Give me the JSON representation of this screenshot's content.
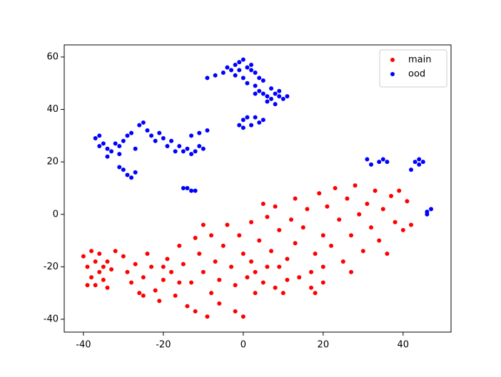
{
  "chart_data": {
    "type": "scatter",
    "xlim": [
      -44.8,
      52
    ],
    "ylim": [
      -44.9,
      64.6
    ],
    "xticks": [
      -40,
      -20,
      0,
      20,
      40
    ],
    "yticks": [
      -40,
      -20,
      0,
      20,
      40,
      60
    ],
    "legend": "upper right",
    "series": [
      {
        "name": "main",
        "color": "#ff0000",
        "x": [
          -40,
          -39,
          -38,
          -38,
          -37,
          -37,
          -36,
          -36,
          -35,
          -35,
          -34,
          -34,
          -33,
          -39,
          -32,
          -30,
          -29,
          -28,
          -27,
          -26,
          -25,
          -24,
          -23,
          -22,
          -21,
          -20,
          -19,
          -18,
          -17,
          -16,
          -15,
          -14,
          -13,
          -12,
          -12,
          -11,
          -10,
          -9,
          -8,
          -8,
          -7,
          -6,
          -5,
          -4,
          -3,
          -2,
          -2,
          -1,
          0,
          0,
          1,
          2,
          2,
          3,
          4,
          5,
          6,
          6,
          7,
          8,
          8,
          9,
          10,
          11,
          12,
          13,
          13,
          14,
          15,
          16,
          17,
          17,
          18,
          18,
          19,
          20,
          20,
          21,
          22,
          23,
          24,
          25,
          26,
          27,
          28,
          29,
          30,
          31,
          32,
          33,
          34,
          35,
          36,
          37,
          38,
          39,
          40,
          41,
          42,
          -6,
          -16,
          -25,
          -20,
          11,
          3,
          -10,
          27,
          20,
          5,
          9
        ],
        "values": [
          -16,
          -20,
          -14,
          -24,
          -18,
          -27,
          -22,
          -15,
          -20,
          -25,
          -18,
          -28,
          -21,
          -27,
          -14,
          -16,
          -22,
          -26,
          -19,
          -30,
          -24,
          -15,
          -20,
          -29,
          -33,
          -25,
          -17,
          -22,
          -31,
          -12,
          -19,
          -35,
          -26,
          -9,
          -37,
          -15,
          -22,
          -39,
          -30,
          -8,
          -18,
          -25,
          -12,
          -4,
          -20,
          -27,
          -37,
          -8,
          -15,
          -39,
          -24,
          -3,
          -18,
          -30,
          -10,
          -26,
          -1,
          -20,
          -14,
          3,
          -28,
          -6,
          -30,
          -17,
          -2,
          6,
          -11,
          -24,
          -5,
          2,
          -22,
          -28,
          -30,
          -15,
          8,
          -8,
          -26,
          3,
          -12,
          10,
          -2,
          -18,
          6,
          -8,
          11,
          0,
          -14,
          4,
          -5,
          9,
          -10,
          2,
          -15,
          7,
          -3,
          9,
          -6,
          5,
          -4,
          -34,
          -26,
          -31,
          -20,
          -25,
          -22,
          -4,
          -22,
          -20,
          4,
          -20
        ]
      },
      {
        "name": "ood",
        "color": "#0000ff",
        "x": [
          -9,
          -7,
          -5,
          -4,
          -3,
          -2,
          -1,
          0,
          1,
          2,
          3,
          -2,
          0,
          1,
          3,
          4,
          5,
          -1,
          2,
          4,
          5,
          6,
          7,
          8,
          9,
          10,
          11,
          8,
          6,
          3,
          7,
          9,
          0,
          1,
          3,
          5,
          -1,
          0,
          2,
          4,
          -37,
          -36,
          -35,
          -34,
          -33,
          -36,
          -32,
          -31,
          -30,
          -29,
          -28,
          -27,
          -26,
          -25,
          -24,
          -23,
          -22,
          -21,
          -20,
          -19,
          -18,
          -17,
          -16,
          -15,
          -14,
          -13,
          -12,
          -11,
          -10,
          -11,
          -9,
          -13,
          -34,
          -31,
          -30,
          -29,
          -28,
          -27,
          -31,
          -14,
          -13,
          -12,
          -15,
          31,
          32,
          34,
          35,
          36,
          43,
          44,
          45,
          44,
          46,
          47,
          46,
          42
        ],
        "values": [
          52,
          53,
          54,
          56,
          55,
          57,
          58,
          59,
          56,
          55,
          54,
          53,
          52,
          50,
          49,
          52,
          51,
          55,
          57,
          47,
          46,
          45,
          44,
          46,
          45,
          44,
          45,
          42,
          43,
          46,
          48,
          47,
          36,
          37,
          37,
          36,
          34,
          33,
          34,
          35,
          29,
          30,
          27,
          25,
          24,
          26,
          27,
          26,
          28,
          30,
          31,
          25,
          34,
          35,
          32,
          30,
          28,
          31,
          29,
          26,
          28,
          24,
          26,
          24,
          25,
          23,
          24,
          26,
          25,
          31,
          32,
          30,
          22,
          23,
          17,
          15,
          14,
          16,
          18,
          10,
          9,
          9,
          10,
          21,
          19,
          20,
          21,
          20,
          20,
          21,
          20,
          19,
          0,
          2,
          1,
          17
        ]
      }
    ]
  }
}
